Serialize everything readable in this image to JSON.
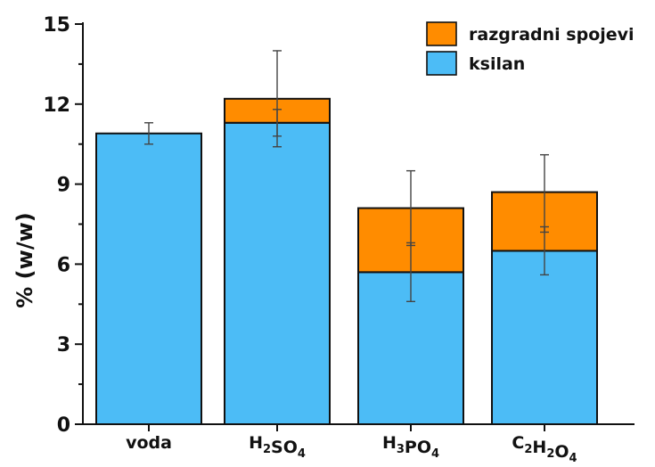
{
  "chart_data": {
    "type": "bar",
    "stacked": true,
    "ylabel": "% (w/w)",
    "ylim": [
      0,
      15
    ],
    "yticks": [
      "0",
      "3",
      "6",
      "9",
      "12",
      "15"
    ],
    "categories": [
      {
        "base": "voda",
        "parts": [
          {
            "t": "voda",
            "sub": false
          }
        ]
      },
      {
        "base": "H2SO4",
        "parts": [
          {
            "t": "H",
            "sub": false
          },
          {
            "t": "2",
            "sub": true
          },
          {
            "t": "SO",
            "sub": false
          },
          {
            "t": "4",
            "sub": true
          }
        ]
      },
      {
        "base": "H3PO4",
        "parts": [
          {
            "t": "H",
            "sub": false
          },
          {
            "t": "3",
            "sub": true
          },
          {
            "t": "PO",
            "sub": false
          },
          {
            "t": "4",
            "sub": true
          }
        ]
      },
      {
        "base": "C2H2O4",
        "parts": [
          {
            "t": "C",
            "sub": false
          },
          {
            "t": "2",
            "sub": true
          },
          {
            "t": "H",
            "sub": false
          },
          {
            "t": "2",
            "sub": true
          },
          {
            "t": "O",
            "sub": false
          },
          {
            "t": "4",
            "sub": true
          }
        ]
      }
    ],
    "series": [
      {
        "name": "ksilan",
        "color": "#4cbcf6",
        "values": [
          10.9,
          11.3,
          5.7,
          6.5
        ],
        "err_low": [
          10.5,
          10.4,
          4.6,
          5.6
        ],
        "err_high": [
          11.3,
          11.8,
          6.8,
          7.4
        ]
      },
      {
        "name": "razgradni spojevi",
        "color": "#ff8c00",
        "values": [
          0,
          0.9,
          2.4,
          2.2
        ],
        "err_low": [
          null,
          10.8,
          6.7,
          7.2
        ],
        "err_high": [
          null,
          14.0,
          9.5,
          10.1
        ]
      }
    ],
    "legend": {
      "position": "top-right",
      "order": [
        "razgradni spojevi",
        "ksilan"
      ]
    },
    "grid": false
  }
}
